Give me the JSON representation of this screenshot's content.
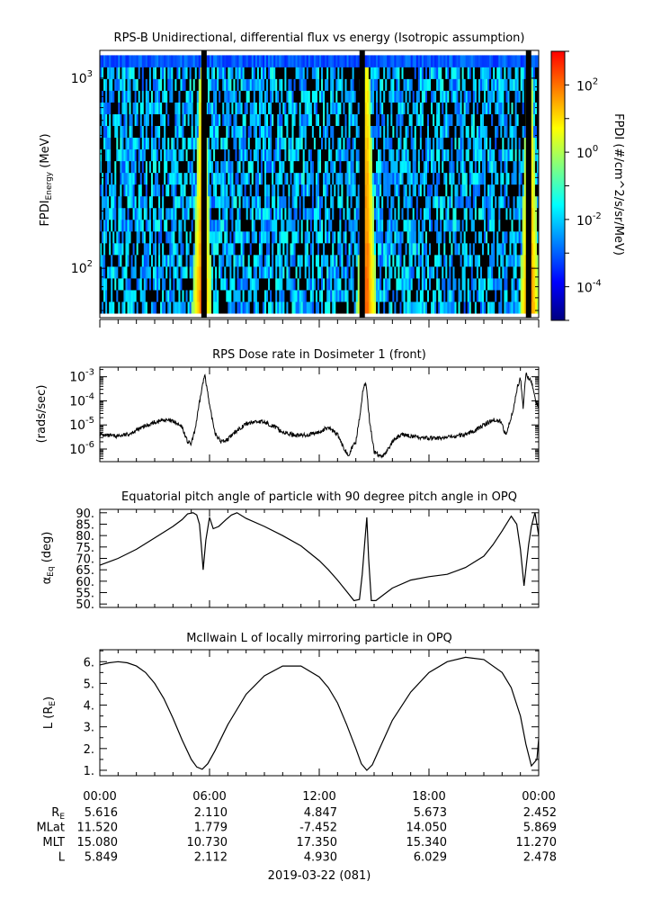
{
  "chart_data": [
    {
      "type": "heatmap",
      "title": "RPS-B  Unidirectional, differential flux vs energy (Isotropic assumption)",
      "ylabel_main": "FPDI",
      "ylabel_sub": "Energy",
      "ylabel_unit": "(MeV)",
      "yscale": "log",
      "ylim": [
        55,
        1400
      ],
      "yticks": [
        {
          "value": 100,
          "base": "10",
          "exp": "2"
        },
        {
          "value": 1000,
          "base": "10",
          "exp": "3"
        }
      ],
      "xlim": [
        0,
        24
      ],
      "colorbar": {
        "label": "FPDI (#/cm^2/s/sr/MeV)",
        "scale": "log",
        "range": [
          1e-05,
          1000.0
        ],
        "ticks": [
          {
            "base": "10",
            "exp": "-4",
            "value": -4
          },
          {
            "base": "10",
            "exp": "-2",
            "value": -2
          },
          {
            "base": "10",
            "exp": "0",
            "value": 0
          },
          {
            "base": "10",
            "exp": "2",
            "value": 2
          }
        ],
        "colors": [
          "#00007f",
          "#0000ff",
          "#0080ff",
          "#00ffff",
          "#80ff80",
          "#ffff00",
          "#ff8000",
          "#ff0000"
        ]
      },
      "bright_bands_hours": [
        5.6,
        14.6,
        23.5
      ]
    },
    {
      "type": "line",
      "title": "RPS  Dose rate in Dosimeter 1 (front)",
      "ylabel": "(rads/sec)",
      "yscale": "log",
      "ylim": [
        3e-07,
        0.0025
      ],
      "yticks": [
        {
          "value": 1e-06,
          "base": "10",
          "exp": "-6"
        },
        {
          "value": 1e-05,
          "base": "10",
          "exp": "-5"
        },
        {
          "value": 0.0001,
          "base": "10",
          "exp": "-4"
        },
        {
          "value": 0.001,
          "base": "10",
          "exp": "-3"
        }
      ],
      "xlim": [
        0,
        24
      ],
      "x": [
        0,
        0.5,
        1,
        1.5,
        2,
        2.5,
        3,
        3.5,
        4,
        4.5,
        4.8,
        5.0,
        5.2,
        5.6,
        5.75,
        6.0,
        6.3,
        6.6,
        7,
        7.5,
        8,
        8.5,
        9,
        9.5,
        10,
        10.5,
        11,
        11.5,
        12,
        12.5,
        13,
        13.3,
        13.6,
        14.0,
        14.2,
        14.4,
        14.55,
        14.75,
        15.0,
        15.3,
        15.6,
        16,
        16.5,
        17,
        17.5,
        18,
        18.5,
        19,
        19.5,
        20,
        20.5,
        21,
        21.5,
        21.9,
        22.2,
        22.6,
        22.85,
        23.0,
        23.15,
        23.3,
        23.6,
        23.8,
        24
      ],
      "y": [
        4e-06,
        3.5e-06,
        3.5e-06,
        4e-06,
        6e-06,
        9e-06,
        1.3e-05,
        1.6e-05,
        1.4e-05,
        8e-06,
        2e-06,
        1.6e-06,
        6e-06,
        0.0004,
        0.0013,
        6e-05,
        5e-06,
        2e-06,
        2.5e-06,
        6e-06,
        1.1e-05,
        1.4e-05,
        1.3e-05,
        9e-06,
        5e-06,
        4e-06,
        3.7e-06,
        4e-06,
        5e-06,
        8e-06,
        4e-06,
        1.2e-06,
        6e-07,
        2e-06,
        2e-05,
        0.0003,
        0.0006,
        1.5e-05,
        8e-07,
        5e-07,
        6e-07,
        2e-06,
        4e-06,
        3.5e-06,
        3e-06,
        2.8e-06,
        2.8e-06,
        3e-06,
        3.5e-06,
        4e-06,
        6e-06,
        1e-05,
        1.6e-05,
        1.5e-05,
        4e-06,
        4e-05,
        0.0004,
        0.0009,
        5e-05,
        0.0014,
        0.0006,
        0.00012,
        6e-05
      ]
    },
    {
      "type": "line",
      "title": "Equatorial pitch angle of particle with 90 degree pitch angle in OPQ",
      "ylabel_main": "α",
      "ylabel_sub": "Eq",
      "ylabel_unit": "(deg)",
      "ylim": [
        48.5,
        91.5
      ],
      "yticks": [
        50,
        55,
        60,
        65,
        70,
        75,
        80,
        85,
        90
      ],
      "ytick_labels": [
        "50.",
        "55.",
        "60.",
        "65.",
        "70.",
        "75.",
        "80.",
        "85.",
        "90."
      ],
      "xlim": [
        0,
        24
      ],
      "x": [
        0,
        1,
        2,
        3,
        4,
        4.5,
        4.8,
        5.1,
        5.3,
        5.45,
        5.55,
        5.65,
        5.8,
        6.0,
        6.2,
        6.5,
        6.9,
        7.2,
        7.5,
        8,
        9,
        10,
        11,
        12,
        12.5,
        13,
        13.5,
        13.9,
        14.2,
        14.35,
        14.5,
        14.6,
        14.7,
        14.85,
        15.1,
        15.5,
        16,
        17,
        18,
        19,
        20,
        21,
        21.5,
        22,
        22.5,
        22.8,
        23.0,
        23.2,
        23.45,
        23.6,
        23.8,
        24
      ],
      "y": [
        67,
        70,
        74,
        79,
        84,
        87,
        89.5,
        90,
        89,
        85,
        76,
        65,
        78,
        88,
        83,
        84,
        87,
        89,
        90,
        87.5,
        84,
        80,
        75.5,
        69,
        65,
        60.5,
        55.5,
        51.5,
        52,
        63,
        78,
        88,
        70,
        51.5,
        51.5,
        54,
        57,
        60.5,
        62,
        63,
        66,
        71,
        76,
        82,
        88.5,
        85,
        74,
        58,
        76,
        84,
        90,
        80
      ]
    },
    {
      "type": "line",
      "title": "McIlwain L of locally mirroring particle in OPQ",
      "ylabel": "L (R",
      "ylabel_sub": "E",
      "ylabel_close": ")",
      "ylim": [
        0.75,
        6.55
      ],
      "yticks": [
        1,
        2,
        3,
        4,
        5,
        6
      ],
      "ytick_labels": [
        "1.",
        "2.",
        "3.",
        "4.",
        "5.",
        "6."
      ],
      "xlim": [
        0,
        24
      ],
      "x": [
        0,
        0.5,
        1,
        1.5,
        2,
        2.5,
        3,
        3.5,
        4,
        4.5,
        5,
        5.3,
        5.6,
        5.9,
        6.3,
        7,
        8,
        9,
        10,
        11,
        12,
        12.5,
        13,
        13.5,
        14,
        14.3,
        14.6,
        14.9,
        15.3,
        16,
        17,
        18,
        19,
        20,
        21,
        22,
        22.5,
        23,
        23.3,
        23.6,
        23.9,
        24
      ],
      "y": [
        5.85,
        5.95,
        6.0,
        5.95,
        5.8,
        5.5,
        5.0,
        4.3,
        3.4,
        2.4,
        1.5,
        1.15,
        1.05,
        1.3,
        1.9,
        3.1,
        4.5,
        5.35,
        5.8,
        5.8,
        5.3,
        4.8,
        4.1,
        3.1,
        2.0,
        1.3,
        1.0,
        1.25,
        2.0,
        3.3,
        4.6,
        5.5,
        6.0,
        6.2,
        6.1,
        5.5,
        4.8,
        3.5,
        2.2,
        1.2,
        1.5,
        2.45
      ]
    }
  ],
  "xaxis": {
    "tick_labels": [
      "00:00",
      "06:00",
      "12:00",
      "18:00",
      "00:00"
    ],
    "tick_hours": [
      0,
      6,
      12,
      18,
      24
    ],
    "rows": [
      {
        "label": "R",
        "label_sub": "E",
        "values": [
          "5.616",
          "2.110",
          "4.847",
          "5.673",
          "2.452"
        ]
      },
      {
        "label": "MLat",
        "label_sub": "",
        "values": [
          "11.520",
          "1.779",
          "-7.452",
          "14.050",
          "5.869"
        ]
      },
      {
        "label": "MLT",
        "label_sub": "",
        "values": [
          "15.080",
          "10.730",
          "17.350",
          "15.340",
          "11.270"
        ]
      },
      {
        "label": "L",
        "label_sub": "",
        "values": [
          "5.849",
          "2.112",
          "4.930",
          "6.029",
          "2.478"
        ]
      }
    ],
    "date_label": "2019-03-22 (081)"
  }
}
